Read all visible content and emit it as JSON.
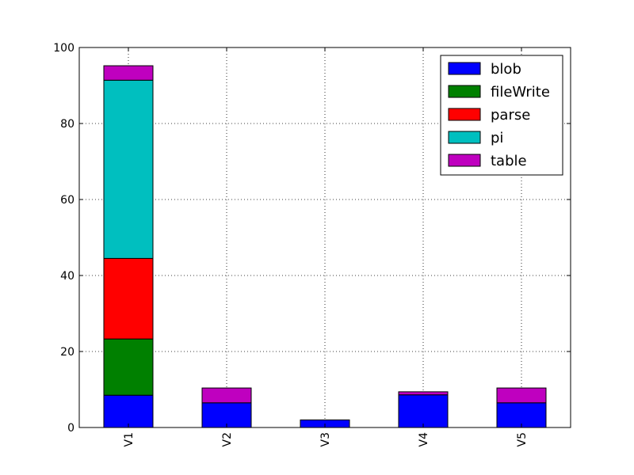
{
  "chart_data": {
    "type": "bar",
    "stacked": true,
    "categories": [
      "V1",
      "V2",
      "V3",
      "V4",
      "V5"
    ],
    "series": [
      {
        "name": "blob",
        "color": "#0000ff",
        "values": [
          8.5,
          6.5,
          2.0,
          8.6,
          6.5
        ]
      },
      {
        "name": "fileWrite",
        "color": "#008000",
        "values": [
          14.8,
          0,
          0,
          0,
          0
        ]
      },
      {
        "name": "parse",
        "color": "#ff0000",
        "values": [
          21.2,
          0,
          0,
          0,
          0
        ]
      },
      {
        "name": "pi",
        "color": "#00bfbf",
        "values": [
          46.9,
          0,
          0,
          0,
          0
        ]
      },
      {
        "name": "table",
        "color": "#bf00bf",
        "values": [
          3.8,
          3.9,
          0,
          0.8,
          3.9
        ]
      }
    ],
    "ylim": [
      0,
      100
    ],
    "yticks": [
      0,
      20,
      40,
      60,
      80,
      100
    ],
    "grid": true,
    "legend_position": "top-right",
    "xtick_rotation": "vertical",
    "title": "",
    "xlabel": "",
    "ylabel": ""
  }
}
